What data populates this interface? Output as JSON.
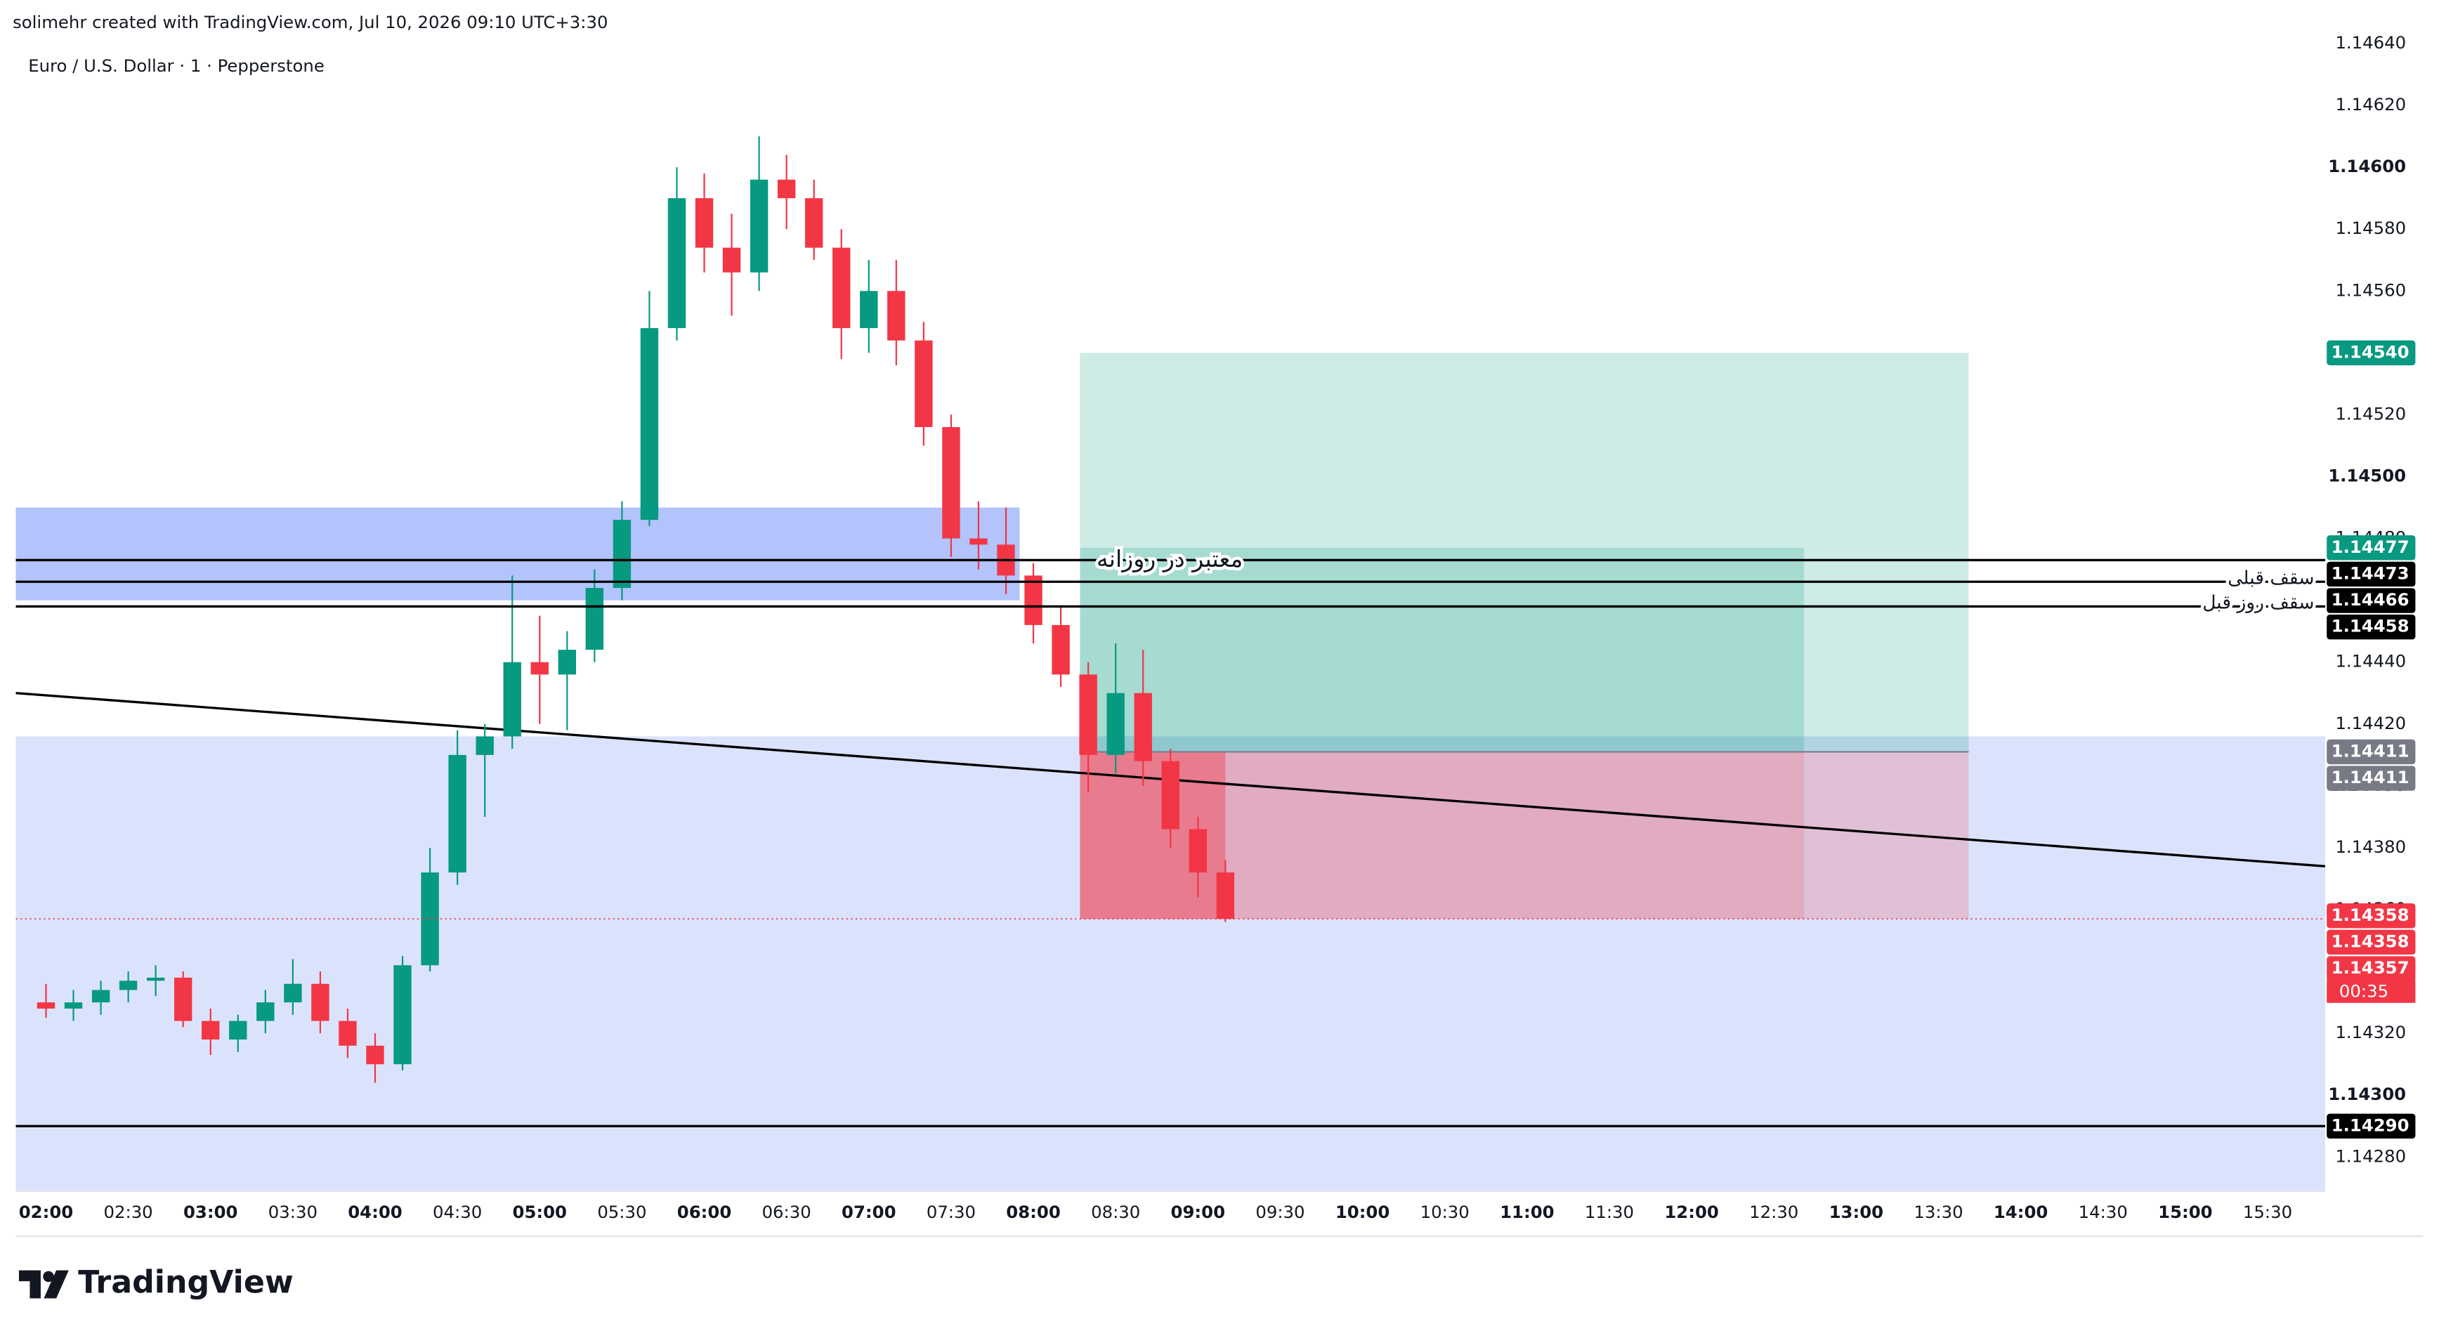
{
  "chart_data": {
    "type": "candlestick",
    "header": "solimehr created with TradingView.com, Jul 10, 2026 09:10 UTC+3:30",
    "title": "Euro / U.S. Dollar · 1 · Pepperstone",
    "brand": "TradingView",
    "x": [
      "02:00",
      "02:10",
      "02:20",
      "02:30",
      "02:40",
      "02:50",
      "03:00",
      "03:10",
      "03:20",
      "03:30",
      "03:40",
      "03:50",
      "04:00",
      "04:10",
      "04:20",
      "04:30",
      "04:40",
      "04:50",
      "05:00",
      "05:10",
      "05:20",
      "05:30",
      "05:40",
      "05:50",
      "06:00",
      "06:10",
      "06:20",
      "06:30",
      "06:40",
      "06:50",
      "07:00",
      "07:10",
      "07:20",
      "07:30",
      "07:40",
      "07:50",
      "08:00",
      "08:10",
      "08:20",
      "08:30",
      "08:40",
      "08:50",
      "09:00",
      "09:10"
    ],
    "open": [
      1.1433,
      1.14328,
      1.1433,
      1.14334,
      1.14337,
      1.14338,
      1.14324,
      1.14318,
      1.14324,
      1.1433,
      1.14336,
      1.14324,
      1.14316,
      1.1431,
      1.14342,
      1.14372,
      1.1441,
      1.14416,
      1.1444,
      1.14436,
      1.14444,
      1.14464,
      1.14486,
      1.14548,
      1.1459,
      1.14574,
      1.14566,
      1.14596,
      1.1459,
      1.14574,
      1.14548,
      1.1456,
      1.14544,
      1.14516,
      1.1448,
      1.14478,
      1.14468,
      1.14452,
      1.14436,
      1.1441,
      1.1443,
      1.14408,
      1.14386,
      1.14372
    ],
    "high": [
      1.14336,
      1.14334,
      1.14337,
      1.1434,
      1.14342,
      1.1434,
      1.14328,
      1.14326,
      1.14334,
      1.14344,
      1.1434,
      1.14328,
      1.1432,
      1.14345,
      1.1438,
      1.14418,
      1.1442,
      1.14468,
      1.14455,
      1.1445,
      1.1447,
      1.14492,
      1.1456,
      1.146,
      1.14598,
      1.14585,
      1.1461,
      1.14604,
      1.14596,
      1.1458,
      1.1457,
      1.1457,
      1.1455,
      1.1452,
      1.14492,
      1.1449,
      1.14472,
      1.14458,
      1.1444,
      1.14446,
      1.14444,
      1.14412,
      1.1439,
      1.14376
    ],
    "low": [
      1.14325,
      1.14324,
      1.14326,
      1.1433,
      1.14332,
      1.14322,
      1.14313,
      1.14314,
      1.1432,
      1.14326,
      1.1432,
      1.14312,
      1.14304,
      1.14308,
      1.1434,
      1.14368,
      1.1439,
      1.14412,
      1.1442,
      1.14418,
      1.1444,
      1.1446,
      1.14484,
      1.14544,
      1.14566,
      1.14552,
      1.1456,
      1.1458,
      1.1457,
      1.14538,
      1.1454,
      1.14536,
      1.1451,
      1.14474,
      1.1447,
      1.14462,
      1.14446,
      1.14432,
      1.14398,
      1.14404,
      1.144,
      1.1438,
      1.14364,
      1.14356
    ],
    "close": [
      1.14328,
      1.1433,
      1.14334,
      1.14337,
      1.14338,
      1.14324,
      1.14318,
      1.14324,
      1.1433,
      1.14336,
      1.14324,
      1.14316,
      1.1431,
      1.14342,
      1.14372,
      1.1441,
      1.14416,
      1.1444,
      1.14436,
      1.14444,
      1.14464,
      1.14486,
      1.14548,
      1.1459,
      1.14574,
      1.14566,
      1.14596,
      1.1459,
      1.14574,
      1.14548,
      1.1456,
      1.14544,
      1.14516,
      1.1448,
      1.14478,
      1.14468,
      1.14452,
      1.14436,
      1.1441,
      1.1443,
      1.14408,
      1.14386,
      1.14372,
      1.14357
    ],
    "up_color": "#089981",
    "down_color": "#f23645",
    "xlim": [
      "01:49",
      "15:51"
    ],
    "xticks": [
      "02:00",
      "02:30",
      "03:00",
      "03:30",
      "04:00",
      "04:30",
      "05:00",
      "05:30",
      "06:00",
      "06:30",
      "07:00",
      "07:30",
      "08:00",
      "08:30",
      "09:00",
      "09:30",
      "10:00",
      "10:30",
      "11:00",
      "11:30",
      "12:00",
      "12:30",
      "13:00",
      "13:30",
      "14:00",
      "14:30",
      "15:00",
      "15:30"
    ],
    "ylim": [
      1.14269,
      1.1464
    ],
    "yticks": [
      {
        "value": 1.1428,
        "label": "1.14280"
      },
      {
        "value": 1.143,
        "label": "1.14300"
      },
      {
        "value": 1.1432,
        "label": "1.14320"
      },
      {
        "value": 1.1434,
        "label": "1.14340"
      },
      {
        "value": 1.1436,
        "label": "1.14360"
      },
      {
        "value": 1.1438,
        "label": "1.14380"
      },
      {
        "value": 1.144,
        "label": "1.14400"
      },
      {
        "value": 1.1442,
        "label": "1.14420"
      },
      {
        "value": 1.1444,
        "label": "1.14440"
      },
      {
        "value": 1.1446,
        "label": "1.14460"
      },
      {
        "value": 1.1448,
        "label": "1.14480"
      },
      {
        "value": 1.145,
        "label": "1.14500"
      },
      {
        "value": 1.1452,
        "label": "1.14520"
      },
      {
        "value": 1.1454,
        "label": "1.14540"
      },
      {
        "value": 1.1456,
        "label": "1.14560"
      },
      {
        "value": 1.1458,
        "label": "1.14580"
      },
      {
        "value": 1.146,
        "label": "1.14600"
      },
      {
        "value": 1.1462,
        "label": "1.14620"
      },
      {
        "value": 1.1464,
        "label": "1.14640"
      }
    ],
    "zones": [
      {
        "start": "01:49",
        "end": "15:51",
        "top": 1.14416,
        "bottom": 1.14269,
        "color": "#dbe3fc"
      },
      {
        "start": "01:49",
        "end": "07:55",
        "top": 1.1449,
        "bottom": 1.1446,
        "color": "#b2c4fb"
      }
    ],
    "position": {
      "start": "08:17",
      "end": "13:41",
      "entry": 1.14411,
      "target": 1.1454,
      "stop": 1.14357,
      "green_end": "12:41",
      "green_top": 1.14477,
      "red_end": "09:10"
    },
    "trendline": {
      "start": "01:49",
      "end": "15:51",
      "from": 1.1443,
      "to": 1.14374
    },
    "levels": [
      {
        "price": 1.14473,
        "label": "معتبر در روزانه"
      },
      {
        "price": 1.14466,
        "label": "سقف قبلی"
      },
      {
        "price": 1.14458,
        "label": "سقف روز قبل"
      },
      {
        "price": 1.1429
      }
    ],
    "price_tags": [
      {
        "value": 1.1454,
        "label": "1.14540",
        "color": "#089981"
      },
      {
        "value": 1.14477,
        "label": "1.14477",
        "color": "#089981"
      },
      {
        "value": 1.14473,
        "label": "1.14473",
        "color": "#000000"
      },
      {
        "value": 1.14466,
        "label": "1.14466",
        "color": "#000000"
      },
      {
        "value": 1.14458,
        "label": "1.14458",
        "color": "#000000"
      },
      {
        "value": 1.14411,
        "label": "1.14411",
        "color": "#787b86"
      },
      {
        "value": 1.14411,
        "label": "1.14411",
        "color": "#787b86"
      },
      {
        "value": 1.14358,
        "label": "1.14358",
        "color": "#f23645"
      },
      {
        "value": 1.14358,
        "label": "1.14358",
        "color": "#f23645"
      },
      {
        "value": 1.14357,
        "label": "1.14357",
        "color": "#f23645"
      },
      {
        "value": 1.1429,
        "label": "1.14290",
        "color": "#000000"
      }
    ],
    "countdown": "00:35"
  }
}
